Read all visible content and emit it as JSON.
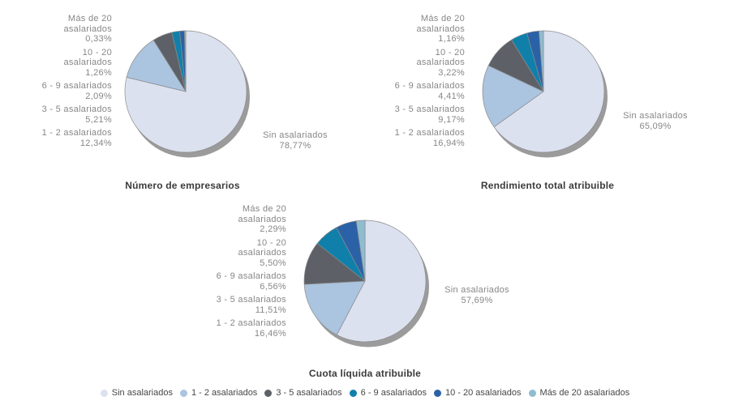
{
  "style": {
    "background": "#ffffff",
    "shadow_color": "#9b9b9b",
    "slice_border": "#8c8c8c",
    "label_color": "#878787",
    "title_color": "#3b3b3b",
    "legend_text_color": "#474747"
  },
  "legend": {
    "items": [
      {
        "label": "Sin asalariados",
        "color": "#dce1ef"
      },
      {
        "label": "1 - 2 asalariados",
        "color": "#abc4df"
      },
      {
        "label": "3 - 5 asalariados",
        "color": "#5d6167"
      },
      {
        "label": "6 - 9 asalariados",
        "color": "#1080aa"
      },
      {
        "label": "10 - 20 asalariados",
        "color": "#2b62a7"
      },
      {
        "label": "Más de 20 asalariados",
        "color": "#90bcd0"
      }
    ]
  },
  "chart_data": [
    {
      "type": "pie",
      "title": "Número de empresarios",
      "categories": [
        "Sin asalariados",
        "1 - 2 asalariados",
        "3 - 5 asalariados",
        "6 - 9 asalariados",
        "10 - 20 asalariados",
        "Más de 20 asalariados"
      ],
      "values": [
        78.77,
        12.34,
        5.21,
        2.09,
        1.26,
        0.33
      ],
      "side_label": {
        "label": "Sin asalariados",
        "pct": "78,77%"
      },
      "left_labels": [
        {
          "lines": [
            "Más de 20",
            "asalariados"
          ],
          "pct": "0,33%"
        },
        {
          "lines": [
            "10 - 20",
            "asalariados"
          ],
          "pct": "1,26%"
        },
        {
          "lines": [
            "6 - 9 asalariados"
          ],
          "pct": "2,09%"
        },
        {
          "lines": [
            "3 - 5 asalariados"
          ],
          "pct": "5,21%"
        },
        {
          "lines": [
            "1 - 2 asalariados"
          ],
          "pct": "12,34%"
        }
      ]
    },
    {
      "type": "pie",
      "title": "Rendimiento total atribuible",
      "categories": [
        "Sin asalariados",
        "1 - 2 asalariados",
        "3 - 5 asalariados",
        "6 - 9 asalariados",
        "10 - 20 asalariados",
        "Más de 20 asalariados"
      ],
      "values": [
        65.09,
        16.94,
        9.17,
        4.41,
        3.22,
        1.16
      ],
      "side_label": {
        "label": "Sin asalariados",
        "pct": "65,09%"
      },
      "left_labels": [
        {
          "lines": [
            "Más de 20",
            "asalariados"
          ],
          "pct": "1,16%"
        },
        {
          "lines": [
            "10 - 20",
            "asalariados"
          ],
          "pct": "3,22%"
        },
        {
          "lines": [
            "6 - 9 asalariados"
          ],
          "pct": "4,41%"
        },
        {
          "lines": [
            "3 - 5 asalariados"
          ],
          "pct": "9,17%"
        },
        {
          "lines": [
            "1 - 2 asalariados"
          ],
          "pct": "16,94%"
        }
      ]
    },
    {
      "type": "pie",
      "title": "Cuota líquida atribuible",
      "categories": [
        "Sin asalariados",
        "1 - 2 asalariados",
        "3 - 5 asalariados",
        "6 - 9 asalariados",
        "10 - 20 asalariados",
        "Más de 20 asalariados"
      ],
      "values": [
        57.69,
        16.46,
        11.51,
        6.56,
        5.5,
        2.29
      ],
      "side_label": {
        "label": "Sin asalariados",
        "pct": "57,69%"
      },
      "left_labels": [
        {
          "lines": [
            "Más de 20",
            "asalariados"
          ],
          "pct": "2,29%"
        },
        {
          "lines": [
            "10 - 20",
            "asalariados"
          ],
          "pct": "5,50%"
        },
        {
          "lines": [
            "6 - 9 asalariados"
          ],
          "pct": "6,56%"
        },
        {
          "lines": [
            "3 - 5 asalariados"
          ],
          "pct": "11,51%"
        },
        {
          "lines": [
            "1 - 2 asalariados"
          ],
          "pct": "16,46%"
        }
      ]
    }
  ]
}
